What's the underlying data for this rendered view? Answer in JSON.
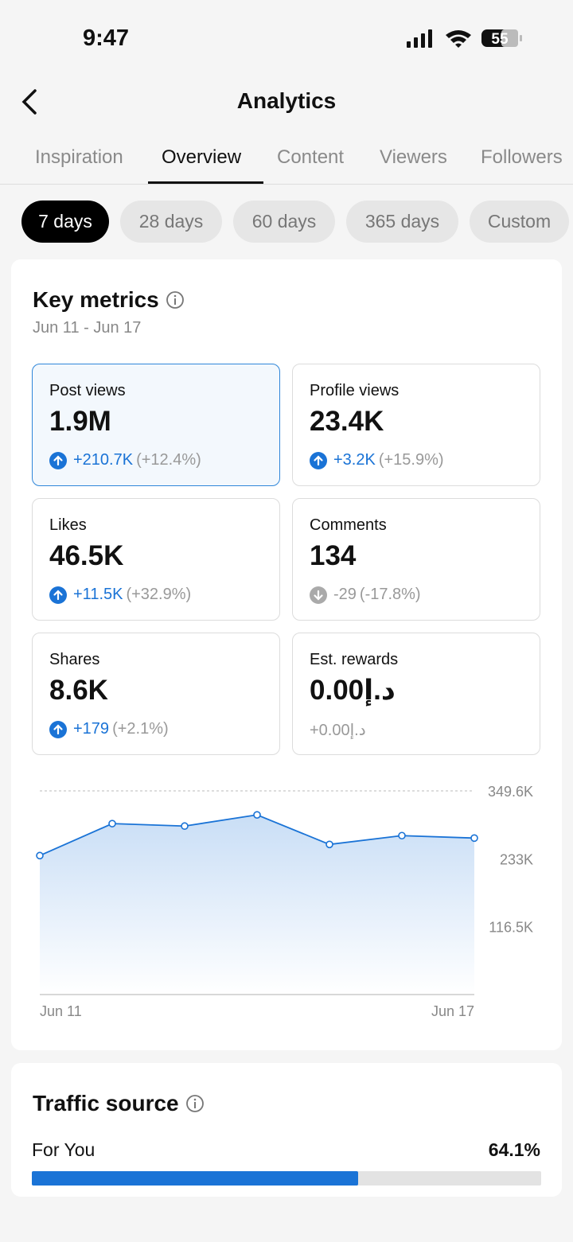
{
  "status_bar": {
    "time": "9:47",
    "battery": "55"
  },
  "header": {
    "title": "Analytics"
  },
  "tabs": [
    "Inspiration",
    "Overview",
    "Content",
    "Viewers",
    "Followers"
  ],
  "active_tab": 1,
  "ranges": [
    "7 days",
    "28 days",
    "60 days",
    "365 days",
    "Custom"
  ],
  "active_range": 0,
  "key_metrics": {
    "title": "Key metrics",
    "date_range": "Jun 11 - Jun 17",
    "selected_card": 0,
    "cards": [
      {
        "label": "Post views",
        "value": "1.9M",
        "change": "+210.7K",
        "percent": "(+12.4%)",
        "direction": "up"
      },
      {
        "label": "Profile views",
        "value": "23.4K",
        "change": "+3.2K",
        "percent": "(+15.9%)",
        "direction": "up"
      },
      {
        "label": "Likes",
        "value": "46.5K",
        "change": "+11.5K",
        "percent": "(+32.9%)",
        "direction": "up"
      },
      {
        "label": "Comments",
        "value": "134",
        "change": "-29",
        "percent": "(-17.8%)",
        "direction": "down"
      },
      {
        "label": "Shares",
        "value": "8.6K",
        "change": "+179",
        "percent": "(+2.1%)",
        "direction": "up"
      },
      {
        "label": "Est. rewards",
        "value": "0.00د.إ",
        "change": "+0.00د.إ"
      }
    ]
  },
  "chart_data": {
    "type": "area",
    "categories": [
      "Jun 11",
      null,
      null,
      null,
      null,
      null,
      "Jun 17"
    ],
    "values": [
      238500,
      293400,
      289200,
      308400,
      257700,
      272800,
      268600
    ],
    "color": "#1a73d6",
    "ylim": [
      0,
      349600
    ],
    "yticks": [
      {
        "value": 116500,
        "label": "116.5K"
      },
      {
        "value": 233000,
        "label": "233K"
      },
      {
        "value": 349600,
        "label": "349.6K"
      }
    ],
    "grid": true
  },
  "traffic_source": {
    "title": "Traffic source",
    "items": [
      {
        "label": "For You",
        "value": 64.1,
        "value_label": "64.1%"
      }
    ]
  }
}
